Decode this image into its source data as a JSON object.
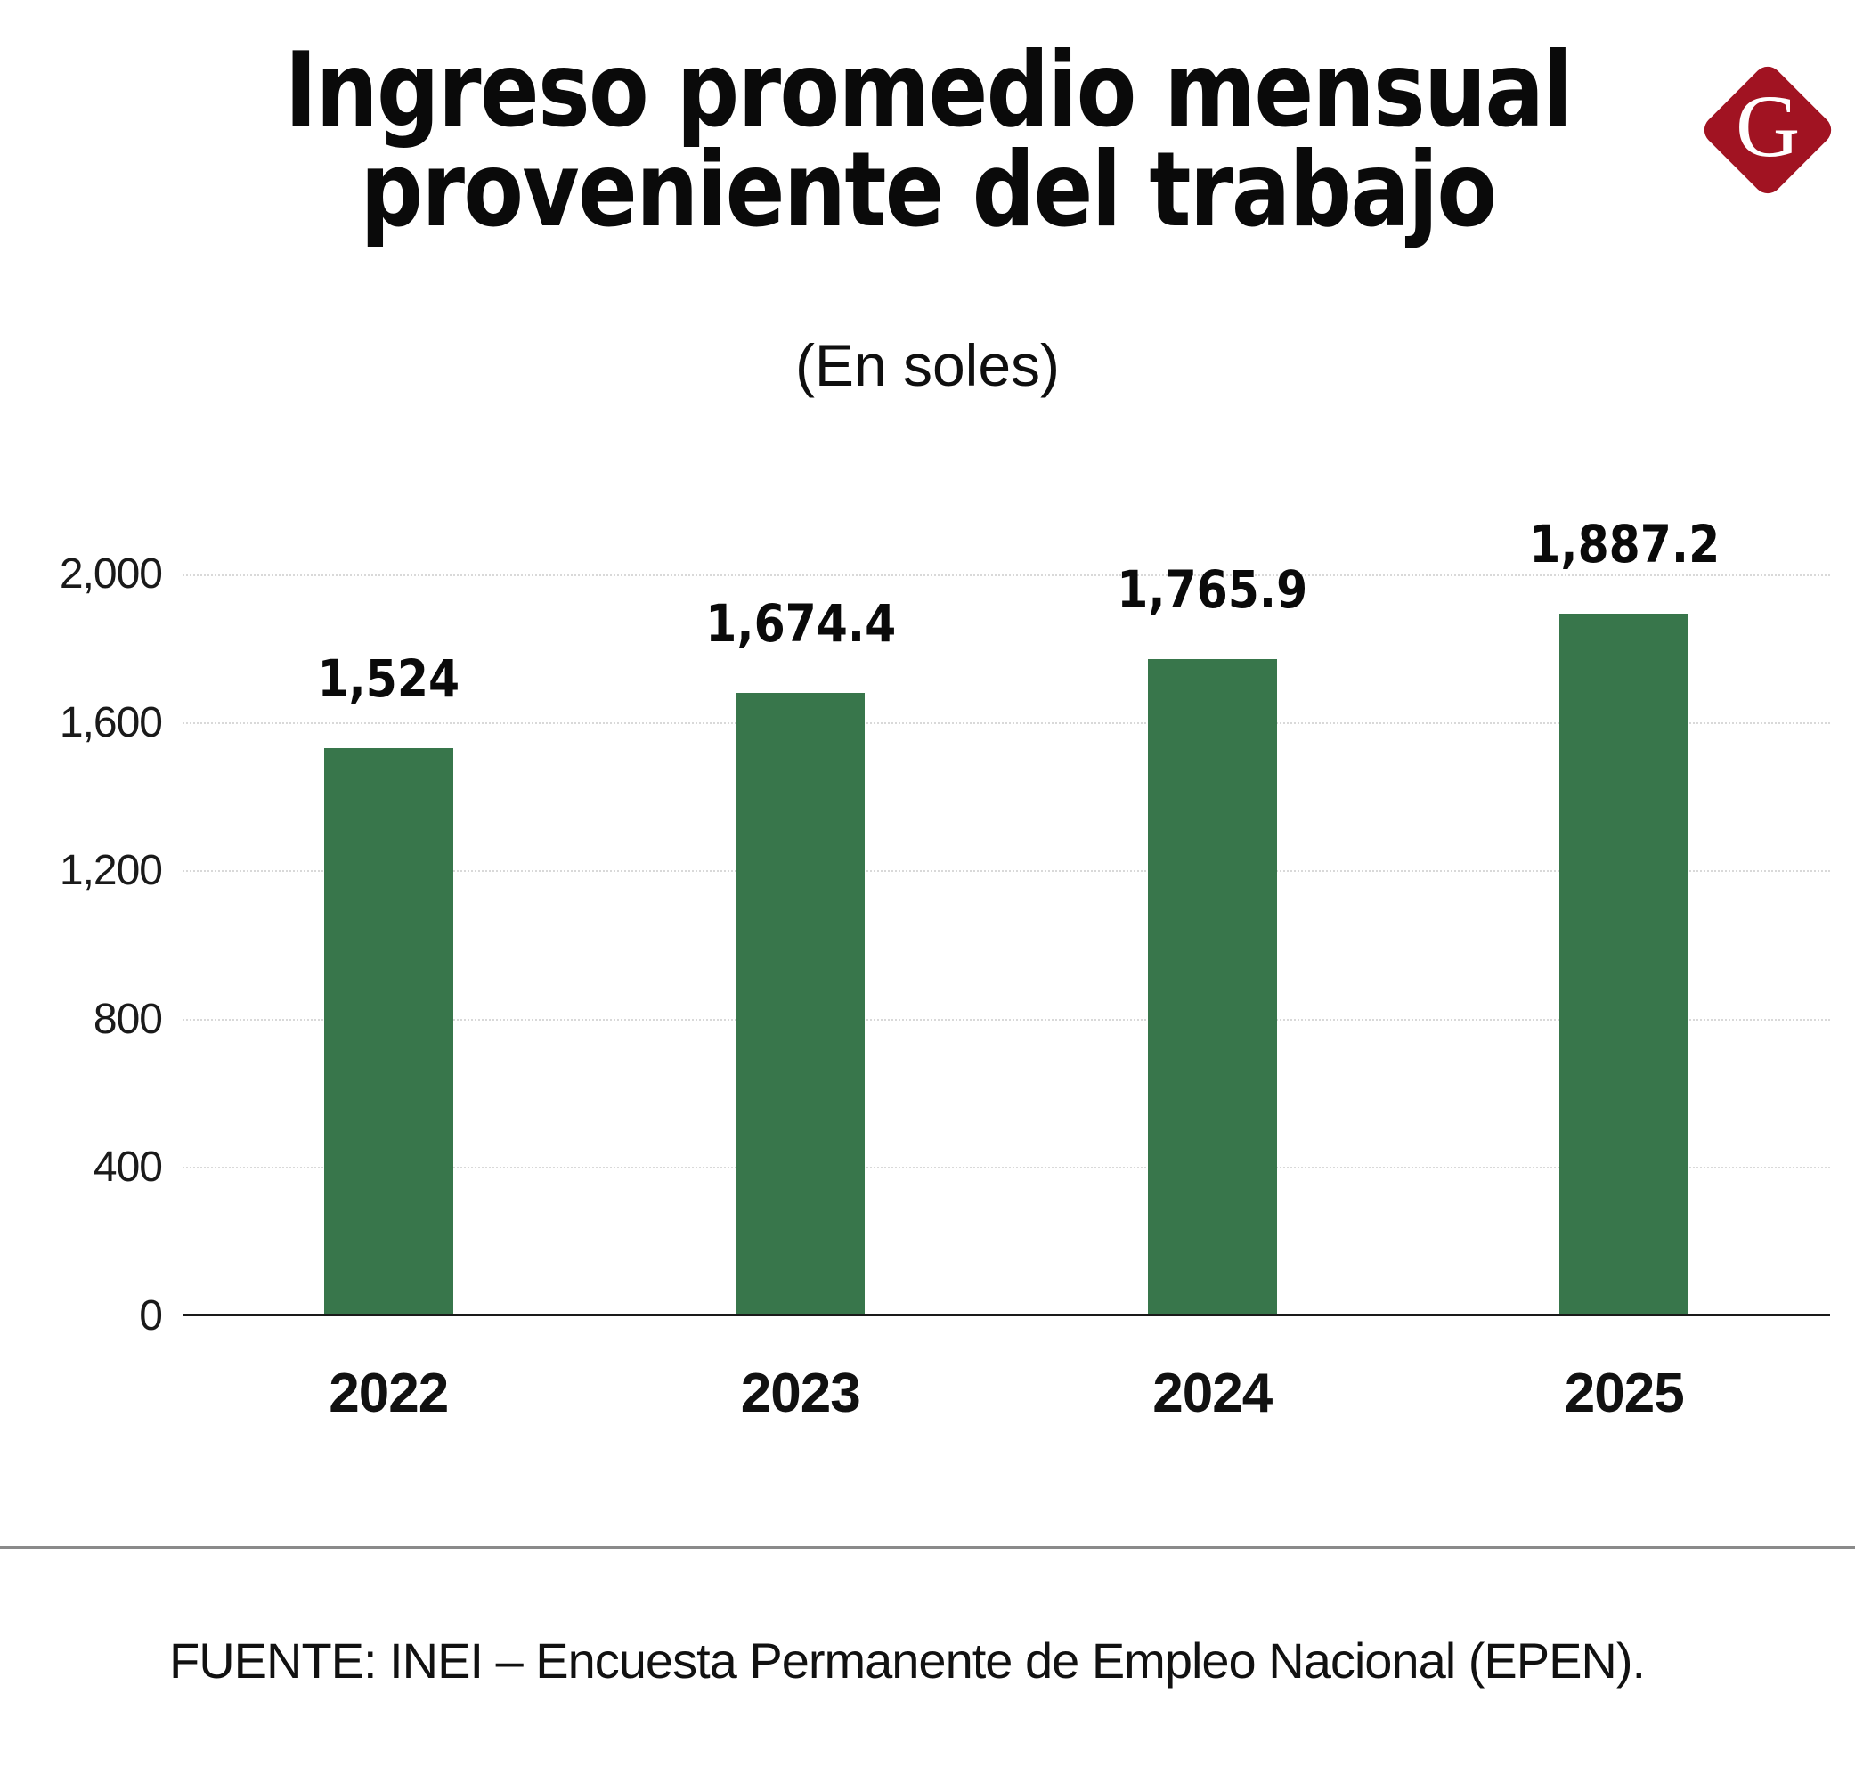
{
  "title": {
    "line1": "Ingreso promedio mensual",
    "line2": "proveniente del trabajo"
  },
  "subtitle": "(En soles)",
  "logo": {
    "letter": "G",
    "background_color": "#A11322",
    "letter_color": "#ffffff"
  },
  "chart_data": {
    "type": "bar",
    "title": "Ingreso promedio mensual proveniente del trabajo",
    "subtitle": "(En soles)",
    "categories": [
      "2022",
      "2023",
      "2024",
      "2025"
    ],
    "values": [
      1524,
      1674.4,
      1765.9,
      1887.2
    ],
    "value_labels": [
      "1,524",
      "1,674.4",
      "1,765.9",
      "1,887.2"
    ],
    "xlabel": "",
    "ylabel": "",
    "ylim": [
      0,
      2000
    ],
    "yticks": [
      0,
      400,
      800,
      1200,
      1600,
      2000
    ],
    "ytick_labels": [
      "0",
      "400",
      "800",
      "1,200",
      "1,600",
      "2,000"
    ],
    "grid": true,
    "legend": false,
    "bar_color": "#38764B",
    "gridline_color": "#d9d9d9",
    "axis_color": "#1a1a1a"
  },
  "source": "FUENTE: INEI – Encuesta Permanente de Empleo Nacional (EPEN)."
}
